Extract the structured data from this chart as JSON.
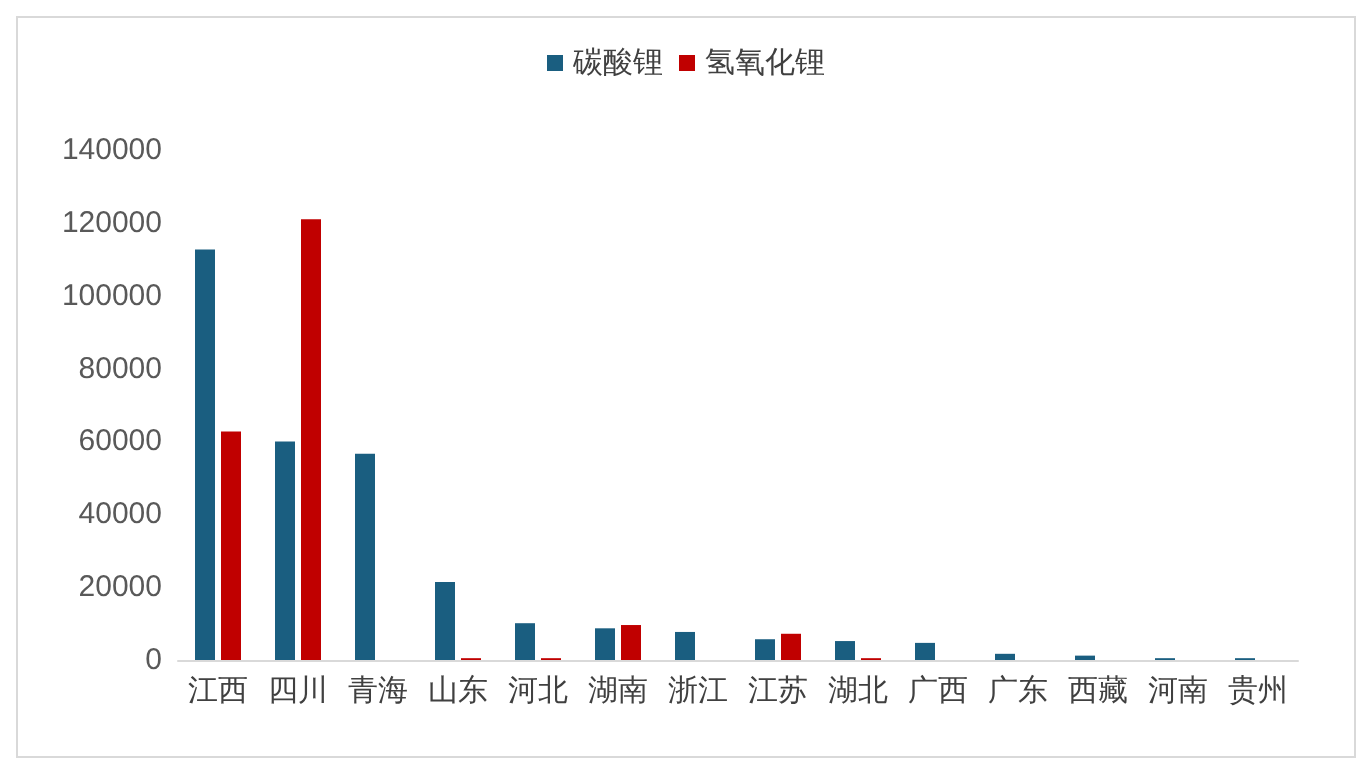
{
  "chart_data": {
    "type": "bar",
    "categories": [
      "江西",
      "四川",
      "青海",
      "山东",
      "河北",
      "湖南",
      "浙江",
      "江苏",
      "湖北",
      "广西",
      "广东",
      "西藏",
      "河南",
      "贵州"
    ],
    "series": [
      {
        "name": "碳酸锂",
        "color": "#1a5e80",
        "values": [
          112700,
          60000,
          56600,
          21400,
          10100,
          8700,
          7700,
          5700,
          5200,
          4700,
          1700,
          1200,
          500,
          500
        ]
      },
      {
        "name": "氢氧化锂",
        "color": "#c00000",
        "values": [
          62700,
          121000,
          0,
          500,
          500,
          9600,
          0,
          7200,
          500,
          0,
          0,
          0,
          0,
          0
        ]
      }
    ],
    "ylim": [
      0,
      140000
    ],
    "yticks": [
      0,
      20000,
      40000,
      60000,
      80000,
      100000,
      120000,
      140000
    ],
    "grid": false,
    "legend": "top"
  }
}
